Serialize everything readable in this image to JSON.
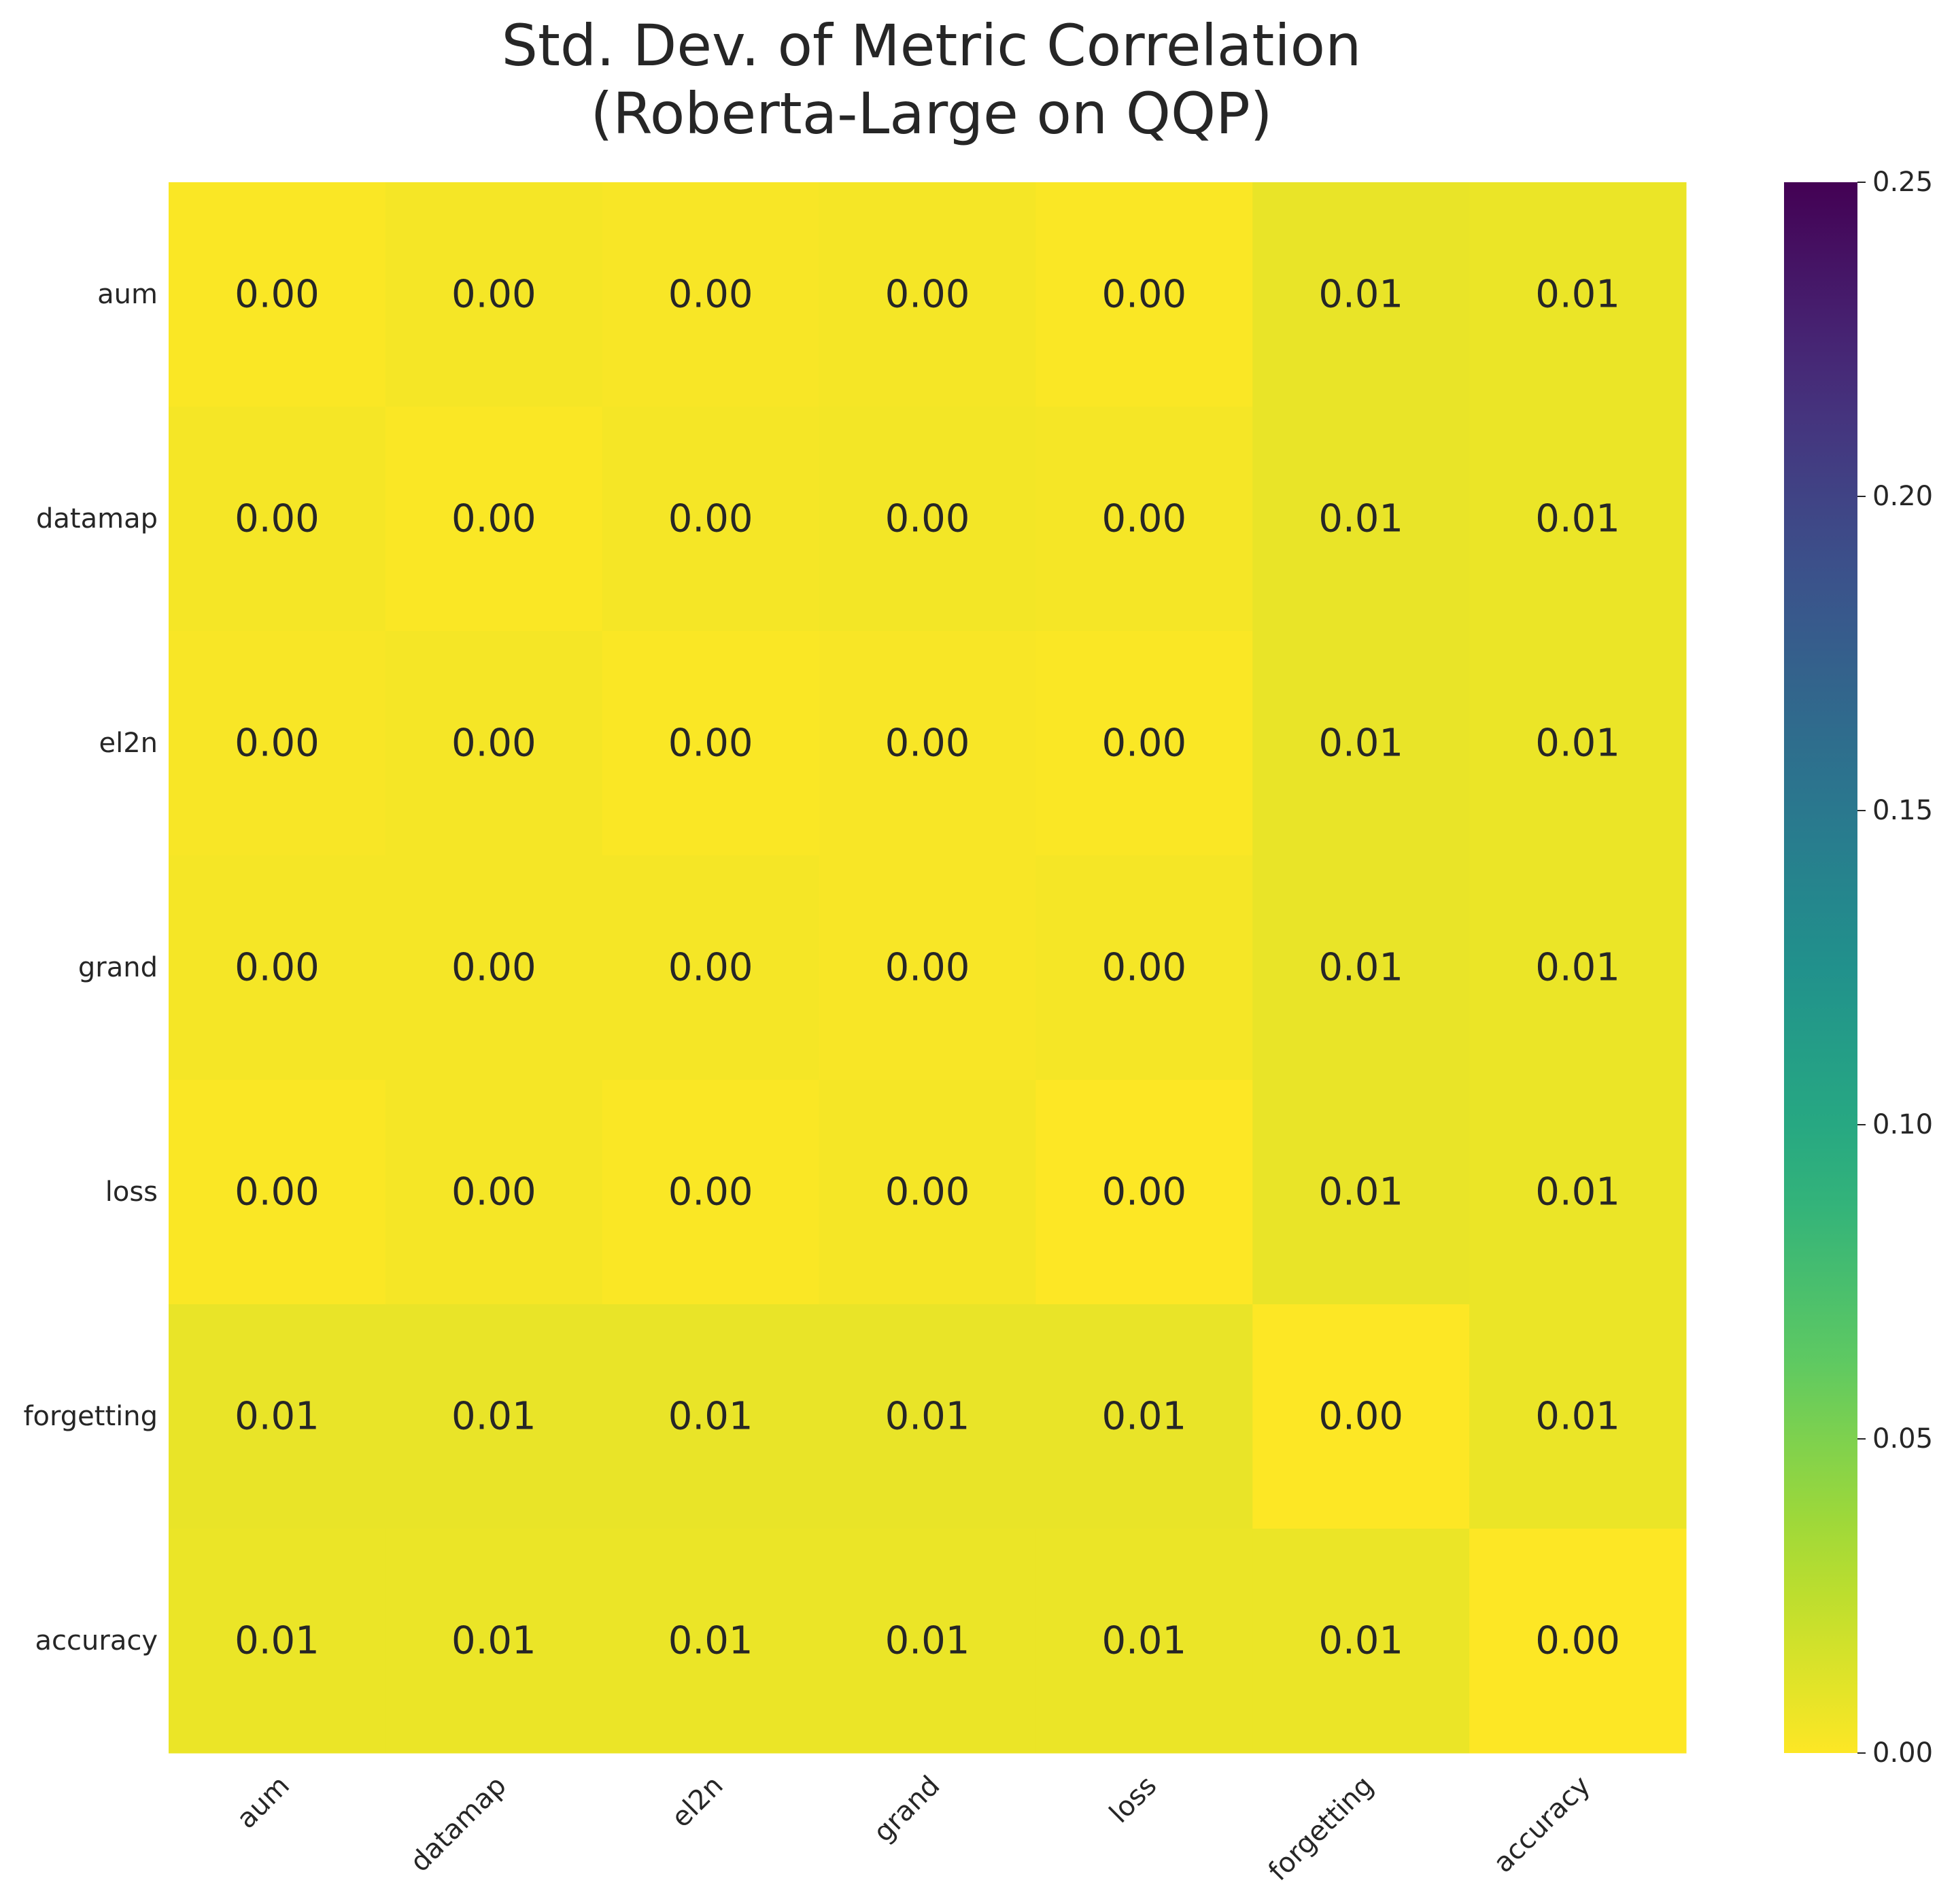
{
  "chart_data": {
    "type": "heatmap",
    "title": [
      "Std. Dev. of Metric Correlation",
      "(Roberta-Large on QQP)"
    ],
    "row_labels": [
      "aum",
      "datamap",
      "el2n",
      "grand",
      "loss",
      "forgetting",
      "accuracy"
    ],
    "col_labels": [
      "aum",
      "datamap",
      "el2n",
      "grand",
      "loss",
      "forgetting",
      "accuracy"
    ],
    "values": [
      [
        0.001,
        0.003,
        0.002,
        0.003,
        0.001,
        0.008,
        0.007
      ],
      [
        0.003,
        0.001,
        0.003,
        0.004,
        0.003,
        0.008,
        0.007
      ],
      [
        0.002,
        0.003,
        0.001,
        0.002,
        0.001,
        0.008,
        0.007
      ],
      [
        0.003,
        0.003,
        0.003,
        0.002,
        0.003,
        0.008,
        0.007
      ],
      [
        0.001,
        0.003,
        0.001,
        0.003,
        0.0,
        0.008,
        0.007
      ],
      [
        0.008,
        0.008,
        0.008,
        0.008,
        0.008,
        0.0,
        0.007
      ],
      [
        0.007,
        0.007,
        0.007,
        0.007,
        0.007,
        0.007,
        0.0
      ]
    ],
    "cell_text": [
      [
        "0.00",
        "0.00",
        "0.00",
        "0.00",
        "0.00",
        "0.01",
        "0.01"
      ],
      [
        "0.00",
        "0.00",
        "0.00",
        "0.00",
        "0.00",
        "0.01",
        "0.01"
      ],
      [
        "0.00",
        "0.00",
        "0.00",
        "0.00",
        "0.00",
        "0.01",
        "0.01"
      ],
      [
        "0.00",
        "0.00",
        "0.00",
        "0.00",
        "0.00",
        "0.01",
        "0.01"
      ],
      [
        "0.00",
        "0.00",
        "0.00",
        "0.00",
        "0.00",
        "0.01",
        "0.01"
      ],
      [
        "0.01",
        "0.01",
        "0.01",
        "0.01",
        "0.01",
        "0.00",
        "0.01"
      ],
      [
        "0.01",
        "0.01",
        "0.01",
        "0.01",
        "0.01",
        "0.01",
        "0.00"
      ]
    ],
    "colormap": "viridis_r",
    "vmin": 0.0,
    "vmax": 0.25,
    "colorbar_ticks": [
      "0.00",
      "0.05",
      "0.10",
      "0.15",
      "0.20",
      "0.25"
    ],
    "legend_placement": "right",
    "grid": false
  }
}
